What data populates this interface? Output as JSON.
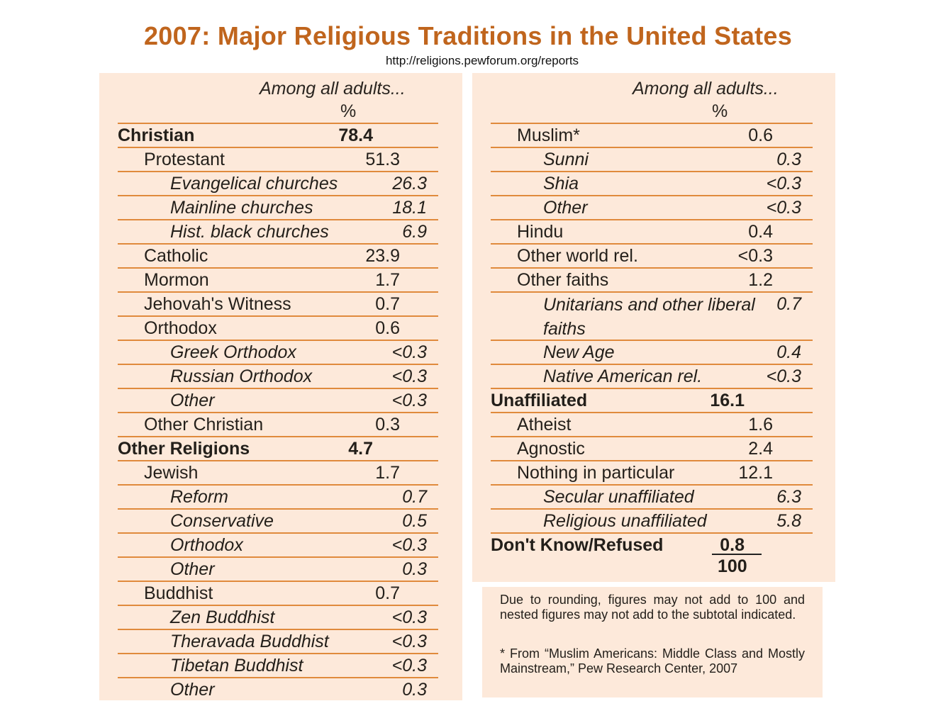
{
  "title": "2007: Major Religious Traditions in the United States",
  "source_url": "http://religions.pewforum.org/reports",
  "column_header": {
    "caption": "Among all adults...",
    "unit": "%"
  },
  "left_table": [
    {
      "label": "Christian",
      "value": "78.4",
      "level": 0
    },
    {
      "label": "Protestant",
      "value": "51.3",
      "level": 1
    },
    {
      "label": "Evangelical churches",
      "value": "26.3",
      "level": 2
    },
    {
      "label": "Mainline churches",
      "value": "18.1",
      "level": 2
    },
    {
      "label": "Hist. black churches",
      "value": "6.9",
      "level": 2
    },
    {
      "label": "Catholic",
      "value": "23.9",
      "level": 1
    },
    {
      "label": "Mormon",
      "value": "1.7",
      "level": 1
    },
    {
      "label": "Jehovah's Witness",
      "value": "0.7",
      "level": 1
    },
    {
      "label": "Orthodox",
      "value": "0.6",
      "level": 1
    },
    {
      "label": "Greek Orthodox",
      "value": "<0.3",
      "level": 2
    },
    {
      "label": "Russian Orthodox",
      "value": "<0.3",
      "level": 2
    },
    {
      "label": "Other",
      "value": "<0.3",
      "level": 2
    },
    {
      "label": "Other Christian",
      "value": "0.3",
      "level": 1
    },
    {
      "label": "Other Religions",
      "value": "4.7",
      "level": 0
    },
    {
      "label": "Jewish",
      "value": "1.7",
      "level": 1
    },
    {
      "label": "Reform",
      "value": "0.7",
      "level": 2
    },
    {
      "label": "Conservative",
      "value": "0.5",
      "level": 2
    },
    {
      "label": "Orthodox",
      "value": "<0.3",
      "level": 2
    },
    {
      "label": "Other",
      "value": "0.3",
      "level": 2
    },
    {
      "label": "Buddhist",
      "value": "0.7",
      "level": 1
    },
    {
      "label": "Zen Buddhist",
      "value": "<0.3",
      "level": 2
    },
    {
      "label": "Theravada Buddhist",
      "value": "<0.3",
      "level": 2
    },
    {
      "label": "Tibetan Buddhist",
      "value": "<0.3",
      "level": 2
    },
    {
      "label": "Other",
      "value": "0.3",
      "level": 2
    }
  ],
  "right_table": [
    {
      "label": "Muslim*",
      "value": "0.6",
      "level": 1
    },
    {
      "label": "Sunni",
      "value": "0.3",
      "level": 2
    },
    {
      "label": "Shia",
      "value": "<0.3",
      "level": 2
    },
    {
      "label": "Other",
      "value": "<0.3",
      "level": 2
    },
    {
      "label": "Hindu",
      "value": "0.4",
      "level": 1
    },
    {
      "label": "Other world rel.",
      "value": "<0.3",
      "level": 1
    },
    {
      "label": "Other faiths",
      "value": "1.2",
      "level": 1
    },
    {
      "label": "Unitarians and other liberal faiths",
      "value": "0.7",
      "level": 2
    },
    {
      "label": "New Age",
      "value": "0.4",
      "level": 2
    },
    {
      "label": "Native American rel.",
      "value": "<0.3",
      "level": 2
    },
    {
      "label": "Unaffiliated",
      "value": "16.1",
      "level": 0
    },
    {
      "label": "Atheist",
      "value": "1.6",
      "level": 1
    },
    {
      "label": "Agnostic",
      "value": "2.4",
      "level": 1
    },
    {
      "label": "Nothing in particular",
      "value": "12.1",
      "level": 1
    },
    {
      "label": "Secular unaffiliated",
      "value": "6.3",
      "level": 2
    },
    {
      "label": "Religious unaffiliated",
      "value": "5.8",
      "level": 2
    },
    {
      "label": "Don't Know/Refused",
      "value": "0.8",
      "level": 0
    }
  ],
  "total": "100",
  "notes": {
    "rounding": "Due to rounding, figures may not add to 100 and nested figures may not add to the subtotal indicated.",
    "source": "* From “Muslim Americans: Middle Class and Mostly Mainstream,” Pew Research Center, 2007"
  },
  "colors": {
    "title": "#c0651d",
    "panel": "#fde9da",
    "rule": "#e08a3c"
  }
}
